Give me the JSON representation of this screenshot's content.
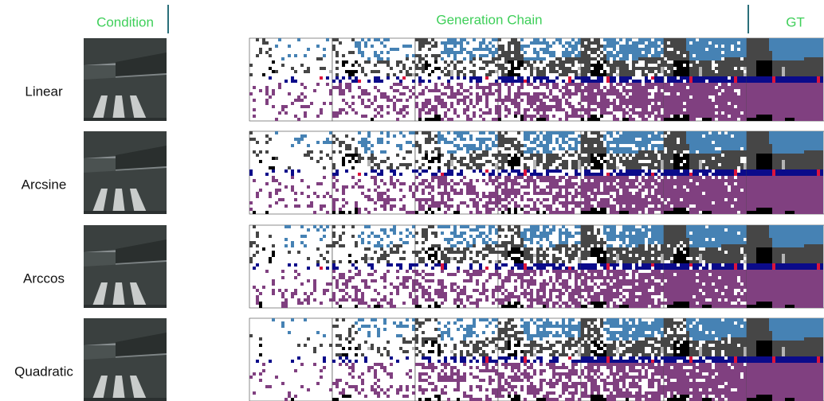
{
  "header": {
    "condition": "Condition",
    "generation_chain": "Generation Chain",
    "gt": "GT"
  },
  "rows": [
    {
      "label": "Linear"
    },
    {
      "label": "Arcsine"
    },
    {
      "label": "Arccos"
    },
    {
      "label": "Quadratic"
    }
  ]
}
